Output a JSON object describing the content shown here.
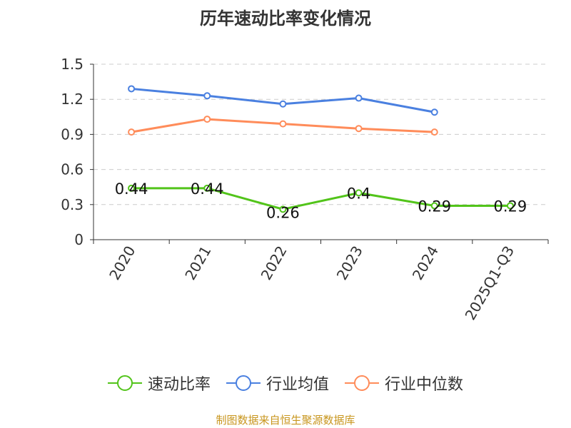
{
  "chart_data": {
    "type": "line",
    "title": "历年速动比率变化情况",
    "categories": [
      "2020",
      "2021",
      "2022",
      "2023",
      "2024",
      "2025Q1-Q3"
    ],
    "ylim": [
      0,
      1.5
    ],
    "yticks": [
      "0",
      "0.3",
      "0.6",
      "0.9",
      "1.2",
      "1.5"
    ],
    "grid": true,
    "legend_placement": "bottom",
    "series": [
      {
        "name": "速动比率",
        "color": "#52c41a",
        "values": [
          0.44,
          0.44,
          0.26,
          0.4,
          0.29,
          0.29
        ],
        "labels": [
          "0.44",
          "0.44",
          "0.26",
          "0.4",
          "0.29",
          "0.29"
        ]
      },
      {
        "name": "行业均值",
        "color": "#4a80e0",
        "values": [
          1.29,
          1.23,
          1.16,
          1.21,
          1.09,
          null
        ]
      },
      {
        "name": "行业中位数",
        "color": "#ff8c5a",
        "values": [
          0.92,
          1.03,
          0.99,
          0.95,
          0.92,
          null
        ]
      }
    ]
  },
  "source": "制图数据来自恒生聚源数据库"
}
